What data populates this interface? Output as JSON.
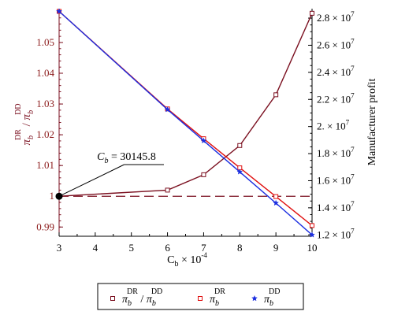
{
  "chart_data": {
    "type": "line",
    "xlabel": "C",
    "xlabel_sub": "b",
    "xlabel_mult": "× 10",
    "xlabel_exp": "-4",
    "x_ticks": [
      "3",
      "4",
      "5",
      "6",
      "7",
      "8",
      "9",
      "10"
    ],
    "xlim": [
      3,
      10
    ],
    "y_left": {
      "ticks": [
        "0.99",
        "1",
        "1.01",
        "1.02",
        "1.03",
        "1.04",
        "1.05"
      ],
      "ylim": [
        0.987,
        1.061
      ],
      "label": {
        "num_sym": "π",
        "num_sub": "b",
        "num_sup": "DR",
        "sep": "/",
        "den_sym": "π",
        "den_sub": "b",
        "den_sup": "DD"
      }
    },
    "y_right": {
      "label": "Manufacturer profit",
      "ylim": [
        11900000,
        28700000
      ],
      "ticks": [
        {
          "mant": "1.2",
          "exp": "7",
          "value": 12000000
        },
        {
          "mant": "1.4",
          "exp": "7",
          "value": 14000000
        },
        {
          "mant": "1.6",
          "exp": "7",
          "value": 16000000
        },
        {
          "mant": "1.8",
          "exp": "7",
          "value": 18000000
        },
        {
          "mant": "2.",
          "exp": "7",
          "value": 20000000
        },
        {
          "mant": "2.2",
          "exp": "7",
          "value": 22000000
        },
        {
          "mant": "2.4",
          "exp": "7",
          "value": 24000000
        },
        {
          "mant": "2.6",
          "exp": "7",
          "value": 26000000
        },
        {
          "mant": "2.8",
          "exp": "7",
          "value": 28000000
        }
      ]
    },
    "series": [
      {
        "axis": "left",
        "color": "#7b1020",
        "marker": "square-open",
        "x": [
          3,
          6,
          7,
          8,
          9,
          10
        ],
        "y": [
          1.0,
          1.002,
          1.007,
          1.0165,
          1.033,
          1.0595
        ]
      },
      {
        "axis": "right",
        "color": "#e01010",
        "marker": "square-open",
        "x": [
          3,
          6,
          7,
          8,
          9,
          10
        ],
        "y": [
          28500000,
          21300000,
          19100000,
          16950000,
          14830000,
          12690000
        ]
      },
      {
        "axis": "right",
        "color": "#1b2ee0",
        "marker": "star",
        "x": [
          3,
          6,
          7,
          8,
          9,
          10
        ],
        "y": [
          28500000,
          21250000,
          18950000,
          16650000,
          14350000,
          12000000
        ]
      }
    ],
    "reference_line": {
      "axis": "left",
      "y": 1.0,
      "style": "dashed",
      "color": "#7b1020"
    },
    "annotation": {
      "sym": "C",
      "sub": "b",
      "text": " = 30145.8",
      "point": {
        "x": 3,
        "y": 1.0
      },
      "leader_to": {
        "x": 4.8,
        "y": 1.0103
      }
    },
    "legend": {
      "placement": "bottom",
      "entries": [
        {
          "marker": "square-open",
          "color": "#7b1020",
          "num_sym": "π",
          "num_sub": "b",
          "num_sup": "DR",
          "sep": "/",
          "den_sym": "π",
          "den_sub": "b",
          "den_sup": "DD"
        },
        {
          "marker": "square-open",
          "color": "#e01010",
          "num_sym": "π",
          "num_sub": "b",
          "num_sup": "DR"
        },
        {
          "marker": "star",
          "color": "#1b2ee0",
          "num_sym": "π",
          "num_sub": "b",
          "num_sup": "DD"
        }
      ]
    }
  }
}
